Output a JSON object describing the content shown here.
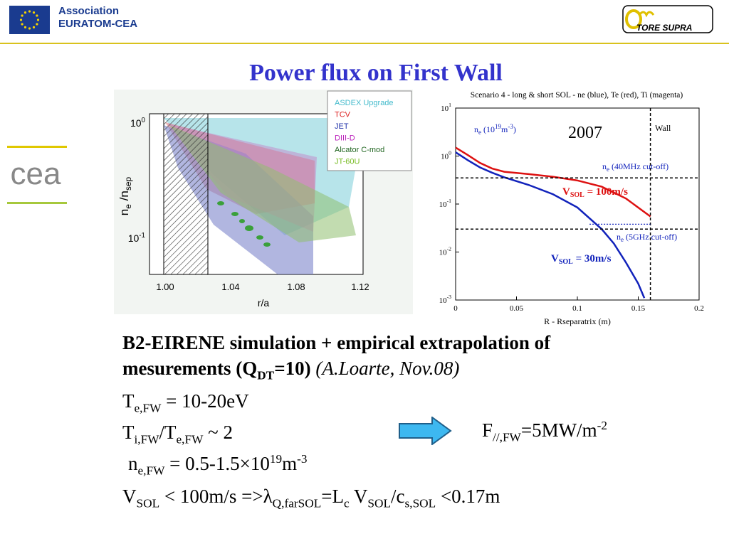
{
  "header": {
    "assoc_line1": "Association",
    "assoc_line2": "EURATOM-CEA",
    "ts_logo_text": "TORE SUPRA",
    "cea_logo_text": "cea",
    "accent": "#d9c21d",
    "eu_blue": "#1a3b8f",
    "eu_star": "#f5d300"
  },
  "slide": {
    "title": "Power flux on First Wall",
    "title_color": "#3333cc"
  },
  "figure_left": {
    "legend": [
      {
        "name": "ASDEX Upgrade",
        "color": "#44bbcc"
      },
      {
        "name": "TCV",
        "color": "#dd2222"
      },
      {
        "name": "JET",
        "color": "#2233aa"
      },
      {
        "name": "DIII-D",
        "color": "#bb22bb"
      },
      {
        "name": "Alcator C-mod",
        "color": "#226622"
      },
      {
        "name": "JT-60U",
        "color": "#77bb22"
      }
    ],
    "ylabel_main": "n",
    "ylabel_sub1": "e",
    "ylabel_mid": " /n",
    "ylabel_sub2": "sep",
    "xlabel": "r/a",
    "yticks": [
      {
        "base": "10",
        "exp": "0"
      },
      {
        "base": "10",
        "exp": "-1"
      }
    ],
    "xticks": [
      "1.00",
      "1.04",
      "1.08",
      "1.12"
    ]
  },
  "chart_data": {
    "type": "line",
    "title": "Scenario 4 - long & short SOL - ne (blue), Te (red), Ti (magenta)",
    "xlabel": "R - Rseparatrix (m)",
    "ylabel": "",
    "xlim": [
      0,
      0.2
    ],
    "ylim": [
      0.001,
      10
    ],
    "yscale": "log",
    "xticks": [
      "0",
      "0.05",
      "0.1",
      "0.15",
      "0.2"
    ],
    "yticks": [
      {
        "base": "10",
        "exp": "1"
      },
      {
        "base": "10",
        "exp": "0"
      },
      {
        "base": "10",
        "exp": "-1"
      },
      {
        "base": "10",
        "exp": "-2"
      },
      {
        "base": "10",
        "exp": "-3"
      }
    ],
    "series": [
      {
        "color": "#dd1111",
        "x": [
          0,
          0.01,
          0.02,
          0.03,
          0.04,
          0.06,
          0.08,
          0.1,
          0.12,
          0.14,
          0.16
        ],
        "y": [
          1.5,
          1.05,
          0.72,
          0.55,
          0.47,
          0.42,
          0.37,
          0.31,
          0.23,
          0.13,
          0.055
        ]
      },
      {
        "color": "#1122bb",
        "x": [
          0,
          0.01,
          0.02,
          0.03,
          0.04,
          0.06,
          0.08,
          0.1,
          0.12,
          0.13,
          0.14,
          0.15,
          0.155
        ],
        "y": [
          1.2,
          0.82,
          0.58,
          0.45,
          0.36,
          0.25,
          0.16,
          0.085,
          0.03,
          0.015,
          0.006,
          0.0022,
          0.0011
        ]
      }
    ],
    "annotations": {
      "year": "2007",
      "wall": "Wall",
      "ne_label_main": "n",
      "ne_label_sub": "e",
      "ne_label_rest": " (10",
      "ne_label_exp": "19",
      "ne_label_unit": "m",
      "ne_label_unit_exp": "-3",
      "ne_label_close": ")",
      "cut40_main": "n",
      "cut40_sub": "e",
      "cut40_rest": " (40MHz cut-off)",
      "cut5_main": "n",
      "cut5_sub": "e",
      "cut5_rest": " (5GHz cut-off)",
      "v100_main": "V",
      "v100_sub": "SOL",
      "v100_rest": " = 100m/s",
      "v30_main": "V",
      "v30_sub": "SOL",
      "v30_rest": " = 30m/s"
    }
  },
  "body": {
    "l1": "B2-EIRENE simulation + empirical extrapolation of",
    "l2a": "mesurements (Q",
    "l2b": "DT",
    "l2c": "=10)",
    "l2d": " (A.Loarte, Nov.08)",
    "te_main": "T",
    "te_sub": "e,FW",
    "te_rest": " = 10-20eV",
    "ti_main": "T",
    "ti_sub": "i,FW",
    "ti_mid": "/T",
    "ti_sub2": "e,FW",
    "ti_rest": " ~ 2",
    "ne_main": "n",
    "ne_sub": "e,FW",
    "ne_rest": " = 0.5-1.5×10",
    "ne_exp": "19",
    "ne_unit": "m",
    "ne_unit_exp": "-3",
    "v_main": "V",
    "v_sub": "SOL",
    "v_mid": " < 100m/s =>λ",
    "v_sub2": "Q,farSOL",
    "v_eq": "=L",
    "v_sub3": "c",
    "v_v": " V",
    "v_sub4": "SOL",
    "v_c": "/c",
    "v_sub5": "s,SOL",
    "v_end": " <0.17m",
    "f_main": "F",
    "f_sub": "//,FW",
    "f_rest": "=5MW/m",
    "f_exp": "-2",
    "arrow_color": "#3db8f0"
  }
}
